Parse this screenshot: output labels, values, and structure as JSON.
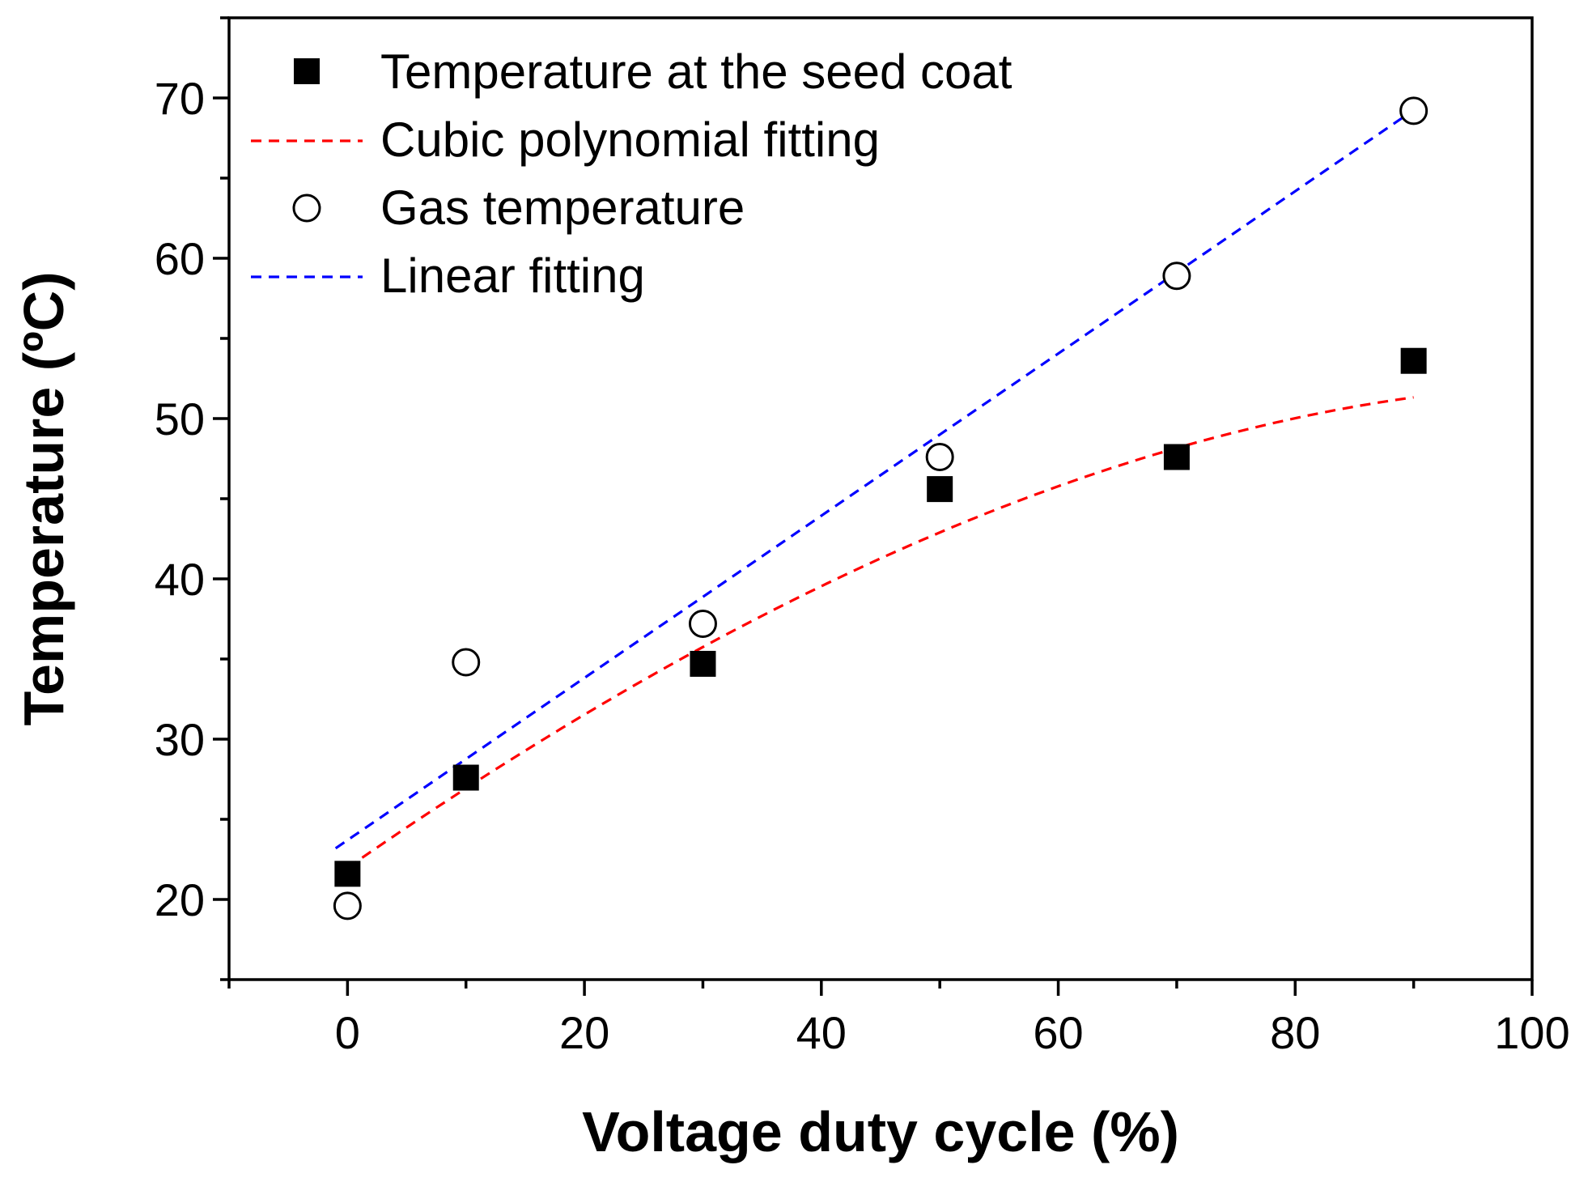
{
  "chart_data": {
    "type": "scatter",
    "title": "",
    "xlabel": "Voltage duty cycle (%)",
    "ylabel": "Temperature (ºC)",
    "xlim": [
      -10,
      100
    ],
    "ylim": [
      15,
      75
    ],
    "x_ticks": [
      0,
      20,
      40,
      60,
      80,
      100
    ],
    "y_ticks": [
      20,
      30,
      40,
      50,
      60,
      70
    ],
    "grid": false,
    "legend_position": "top-left",
    "series": [
      {
        "name": "Temperature at the seed coat",
        "kind": "scatter",
        "marker": "filled-square",
        "color": "#000000",
        "x": [
          0,
          10,
          30,
          50,
          70,
          90
        ],
        "y": [
          21.6,
          27.6,
          34.7,
          45.6,
          47.6,
          53.6
        ]
      },
      {
        "name": "Cubic polynomial fitting",
        "kind": "fit-line",
        "style": "dashed",
        "color": "#ff0000",
        "fit": "cubic",
        "x_range": [
          0,
          90
        ],
        "coefficients": [
          21.97,
          0.5133,
          -0.001667,
          -4.58e-06
        ]
      },
      {
        "name": "Gas temperature",
        "kind": "scatter",
        "marker": "open-circle",
        "color": "#000000",
        "x": [
          0,
          10,
          30,
          50,
          70,
          90
        ],
        "y": [
          19.6,
          34.8,
          37.2,
          47.6,
          58.9,
          69.2
        ]
      },
      {
        "name": "Linear fitting",
        "kind": "fit-line",
        "style": "dashed",
        "color": "#0000ff",
        "fit": "linear",
        "x_range": [
          -1,
          90
        ],
        "coefficients": [
          23.7,
          0.506
        ]
      }
    ]
  }
}
